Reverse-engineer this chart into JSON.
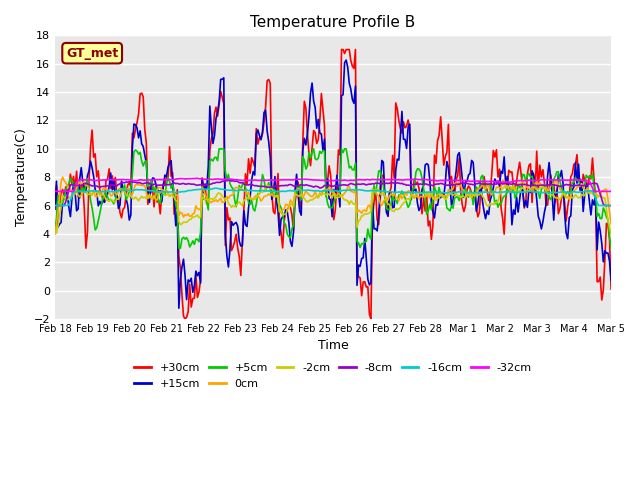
{
  "title": "Temperature Profile B",
  "xlabel": "Time",
  "ylabel": "Temperature(C)",
  "ylim": [
    -2,
    18
  ],
  "yticks": [
    -2,
    0,
    2,
    4,
    6,
    8,
    10,
    12,
    14,
    16,
    18
  ],
  "x_labels": [
    "Feb 18",
    "Feb 19",
    "Feb 20",
    "Feb 21",
    "Feb 22",
    "Feb 23",
    "Feb 24",
    "Feb 25",
    "Feb 26",
    "Feb 27",
    "Feb 28",
    "Mar 1",
    "Mar 2",
    "Mar 3",
    "Mar 4",
    "Mar 5"
  ],
  "annotation_text": "GT_met",
  "annotation_color": "#8B0000",
  "annotation_bg": "#FFFF99",
  "background_color": "#E8E8E8",
  "grid_color": "white",
  "series": [
    {
      "label": "+30cm",
      "color": "#FF0000"
    },
    {
      "label": "+15cm",
      "color": "#0000CD"
    },
    {
      "label": "+5cm",
      "color": "#00CC00"
    },
    {
      "label": "0cm",
      "color": "#FFA500"
    },
    {
      "label": "-2cm",
      "color": "#CCCC00"
    },
    {
      "label": "-8cm",
      "color": "#9900CC"
    },
    {
      "label": "-16cm",
      "color": "#00CCCC"
    },
    {
      "label": "-32cm",
      "color": "#FF00FF"
    }
  ]
}
